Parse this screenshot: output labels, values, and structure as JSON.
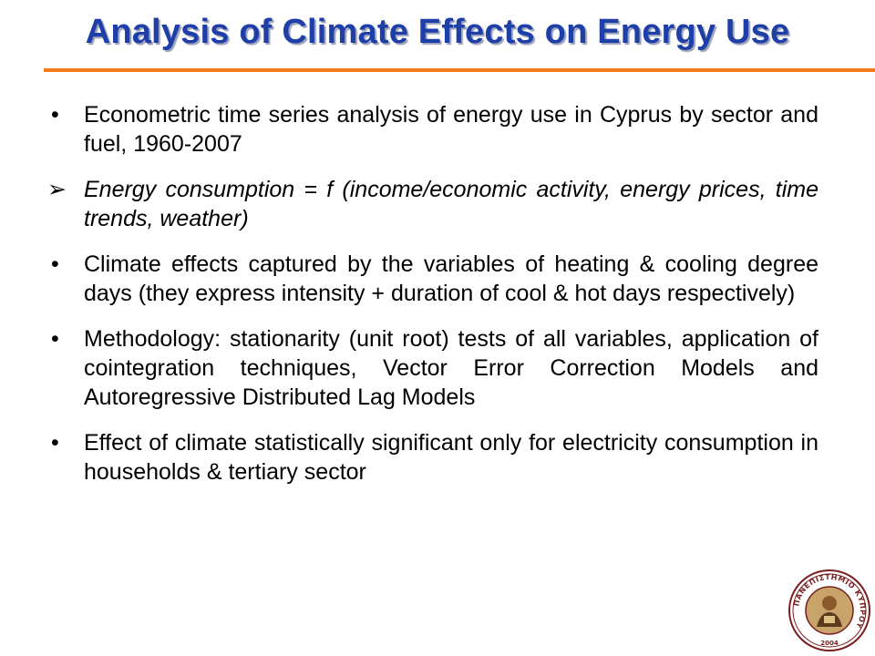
{
  "slide": {
    "title": "Analysis of Climate Effects on Energy Use",
    "accent_color": "#f07a1c",
    "title_color": "#1f3fa8"
  },
  "bullets": [
    {
      "marker": "•",
      "style": "dot",
      "text": "Econometric time series analysis of energy use in Cyprus by sector and fuel, 1960-2007"
    },
    {
      "marker": "➢",
      "style": "arrow-italic",
      "text": "Energy consumption = f (income/economic activity, energy prices, time trends, weather)"
    },
    {
      "marker": "•",
      "style": "dot",
      "text": "Climate effects captured by the variables of heating & cooling degree days (they express intensity + duration of cool & hot days respectively)"
    },
    {
      "marker": "•",
      "style": "dot",
      "text": "Methodology: stationarity (unit root) tests of all variables, application of cointegration techniques, Vector Error Correction Models and Autoregressive Distributed Lag Models"
    },
    {
      "marker": "•",
      "style": "dot",
      "text": "Effect of climate statistically significant only for electricity consumption in households & tertiary sector"
    }
  ],
  "logo": {
    "icon": "university-seal-icon",
    "lettering": "ΠΑΝΕΠΙΣΤΗΜΙΟ ΚΥΠΡΟΥ",
    "year": "2004"
  }
}
